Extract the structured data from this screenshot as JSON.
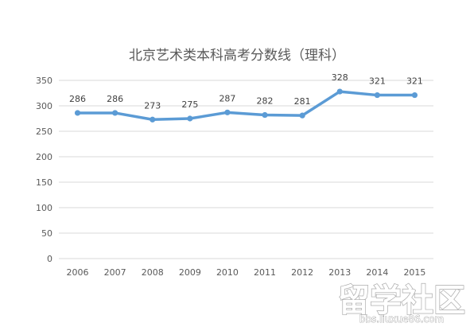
{
  "chart_data": {
    "type": "line",
    "title": "北京艺术类本科高考分数线（理科）",
    "xlabel": "",
    "ylabel": "",
    "categories": [
      "2006",
      "2007",
      "2008",
      "2009",
      "2010",
      "2011",
      "2012",
      "2013",
      "2014",
      "2015"
    ],
    "series": [
      {
        "values": [
          286,
          286,
          273,
          275,
          287,
          282,
          281,
          328,
          321,
          321
        ]
      }
    ],
    "ylim": [
      0,
      350
    ],
    "yticks": [
      0,
      50,
      100,
      150,
      200,
      250,
      300,
      350
    ],
    "grid": true,
    "legend": "none",
    "line_color": "#5b9bd5",
    "grid_color": "#d9d9d9"
  },
  "watermark": {
    "text": "留学社区",
    "url": "bbs.liuxue86.com"
  }
}
